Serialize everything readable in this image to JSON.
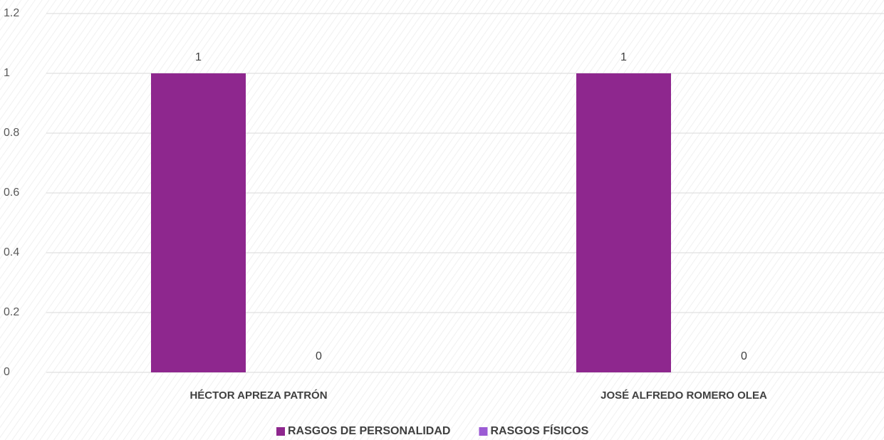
{
  "chart_data": {
    "type": "bar",
    "categories": [
      "HÉCTOR APREZA PATRÓN",
      "JOSÉ ALFREDO ROMERO OLEA"
    ],
    "series": [
      {
        "name": "RASGOS DE PERSONALIDAD",
        "color": "#8e278e",
        "values": [
          1,
          1
        ]
      },
      {
        "name": "RASGOS FÍSICOS",
        "color": "#9b5bd4",
        "values": [
          0,
          0
        ]
      }
    ],
    "ylim": [
      0,
      1.2
    ],
    "yticks": [
      0,
      0.2,
      0.4,
      0.6,
      0.8,
      1,
      1.2
    ],
    "grid": true,
    "legend": "bottom",
    "data_labels": true
  }
}
